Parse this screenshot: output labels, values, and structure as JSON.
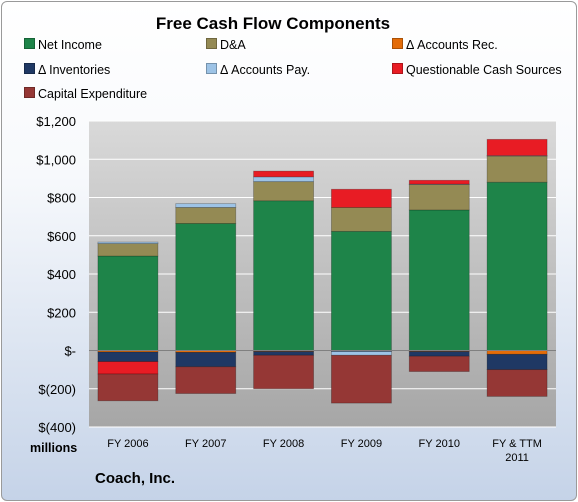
{
  "chart_data": {
    "type": "bar",
    "title": "Free Cash Flow Components",
    "units_label": "millions",
    "footer": "Coach, Inc.",
    "categories": [
      "FY 2006",
      "FY 2007",
      "FY 2008",
      "FY 2009",
      "FY 2010",
      "FY & TTM 2011"
    ],
    "y_ticks": [
      "$1,200",
      "$1,000",
      "$800",
      "$600",
      "$400",
      "$200",
      "$-",
      "$(200)",
      "$(400)"
    ],
    "ylim": [
      -400,
      1200
    ],
    "grid": true,
    "legend_position": "top",
    "series": [
      {
        "name": "Net Income",
        "color": "#1E8449",
        "values": [
          494,
          664,
          783,
          623,
          735,
          880
        ]
      },
      {
        "name": "D&A",
        "color": "#948A54",
        "values": [
          65,
          84,
          100,
          125,
          133,
          137
        ]
      },
      {
        "name": "Δ Accounts Rec.",
        "color": "#E36C09",
        "values": [
          -8,
          -10,
          -5,
          -3,
          -5,
          -20
        ]
      },
      {
        "name": "Δ Inventories",
        "color": "#1F3864",
        "values": [
          -50,
          -75,
          -20,
          -2,
          -25,
          -80
        ]
      },
      {
        "name": "Δ Accounts Pay.",
        "color": "#9DC3E6",
        "values": [
          8,
          20,
          25,
          -20,
          2,
          2
        ]
      },
      {
        "name": "Questionable Cash Sources",
        "color": "#E81C24",
        "values": [
          -65,
          0,
          30,
          95,
          20,
          85
        ]
      },
      {
        "name": "Capital Expenditure",
        "color": "#953735",
        "values": [
          -140,
          -140,
          -175,
          -250,
          -80,
          -140
        ]
      }
    ]
  }
}
